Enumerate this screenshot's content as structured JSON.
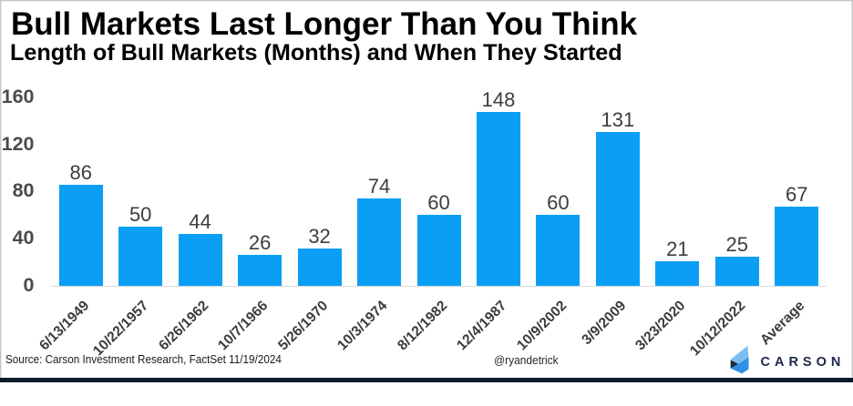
{
  "chart_data": {
    "type": "bar",
    "title": "Bull Markets Last Longer Than You Think",
    "subtitle": "Length of Bull Markets (Months) and When They Started",
    "categories": [
      "6/13/1949",
      "10/22/1957",
      "6/26/1962",
      "10/7/1966",
      "5/26/1970",
      "10/3/1974",
      "8/12/1982",
      "12/4/1987",
      "10/9/2002",
      "3/9/2009",
      "3/23/2020",
      "10/12/2022",
      "Average"
    ],
    "values": [
      86,
      50,
      44,
      26,
      32,
      74,
      60,
      148,
      60,
      131,
      21,
      25,
      67
    ],
    "ylim": [
      0,
      160
    ],
    "yticks": [
      0,
      40,
      80,
      120,
      160
    ],
    "bar_color": "#0a9ff5",
    "grid": "off",
    "legend": "none",
    "xlabel": "",
    "ylabel": ""
  },
  "footer": {
    "source_note": "Source: Carson Investment Research, FactSet 11/19/2024",
    "handle": "@ryandetrick",
    "brand": "CARSON"
  },
  "colors": {
    "bar": "#0a9ff5",
    "axis_line": "#d9d9d9",
    "ytick_text": "#4a4a4a",
    "value_text": "#3d3d3d",
    "xtick_text": "#3b3b3b",
    "brand_navy": "#1b2a47",
    "bottom_bar": "#0d1a2b",
    "logo_light_blue": "#7dbdf0",
    "logo_mid_blue": "#2f90e6",
    "logo_dark_navy": "#1d2b3e"
  }
}
